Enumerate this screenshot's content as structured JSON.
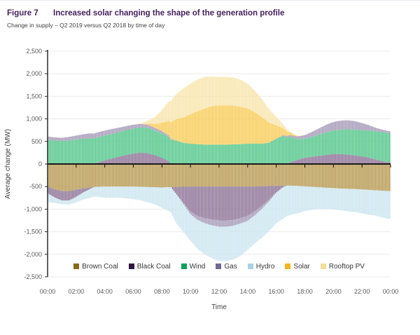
{
  "header": {
    "figure_label": "Figure 7",
    "title": "Increased solar changing the shape of the generation profile",
    "subtitle": "Change in supply – Q2 2019 versus Q2 2018 by time of day"
  },
  "chart_data": {
    "type": "bar",
    "variant": "diverging-stacked-columns-half-hourly",
    "title": "Increased solar changing the shape of the generation profile",
    "xlabel": "Time",
    "ylabel": "Average change (MW)",
    "ylim": [
      -2500,
      2500
    ],
    "ytick_values": [
      2500,
      2000,
      1500,
      1000,
      500,
      0,
      -500,
      -1000,
      -1500,
      -2000,
      -2500
    ],
    "ytick_labels": [
      "2,500",
      "2,000",
      "1,500",
      "1,000",
      "500",
      "0",
      "-500",
      "-1,000",
      "-1,500",
      "-2,000",
      "-2,500"
    ],
    "xtick_labels": [
      "00:00",
      "02:00",
      "04:00",
      "06:00",
      "08:00",
      "10:00",
      "12:00",
      "14:00",
      "16:00",
      "18:00",
      "20:00",
      "22:00",
      "00:00"
    ],
    "x_unit_hours": 0.5,
    "x_start": "00:00",
    "x_end": "24:00",
    "grid": "horizontal-light",
    "legend_position": "bottom",
    "axis_color": "#1a1a1a",
    "grid_color": "#ebebeb",
    "tick_label_color": "#595959",
    "series": [
      {
        "name": "Brown Coal",
        "legend_color": "#8a691b",
        "color": "#b99c55",
        "values": [
          -500,
          -560,
          -600,
          -600,
          -570,
          -540,
          -520,
          -505,
          -500,
          -500,
          -500,
          -500,
          -500,
          -505,
          -510,
          -515,
          -520,
          -515,
          -510,
          -505,
          -500,
          -500,
          -500,
          -500,
          -500,
          -500,
          -500,
          -500,
          -500,
          -500,
          -495,
          -490,
          -485,
          -480,
          -480,
          -485,
          -495,
          -505,
          -515,
          -525,
          -535,
          -545,
          -550,
          -555,
          -565,
          -575,
          -585,
          -595,
          -600
        ]
      },
      {
        "name": "Black Coal",
        "legend_color": "#2f1540",
        "color": "#8f7598",
        "values": [
          -150,
          -180,
          -210,
          -210,
          -160,
          -90,
          -30,
          30,
          80,
          120,
          160,
          200,
          230,
          250,
          240,
          200,
          140,
          60,
          -150,
          -350,
          -550,
          -650,
          -700,
          -730,
          -750,
          -750,
          -740,
          -700,
          -650,
          -550,
          -430,
          -300,
          -150,
          -30,
          40,
          90,
          140,
          160,
          180,
          200,
          220,
          220,
          210,
          190,
          170,
          140,
          100,
          60,
          30
        ]
      },
      {
        "name": "Wind",
        "legend_color": "#0aa35c",
        "color": "#56c78c",
        "values": [
          540,
          520,
          510,
          520,
          540,
          560,
          570,
          560,
          550,
          545,
          545,
          550,
          555,
          560,
          560,
          545,
          540,
          540,
          520,
          470,
          450,
          440,
          430,
          430,
          430,
          430,
          435,
          440,
          450,
          450,
          450,
          470,
          560,
          620,
          560,
          460,
          420,
          440,
          470,
          500,
          520,
          540,
          560,
          570,
          580,
          600,
          620,
          645,
          650
        ]
      },
      {
        "name": "Gas",
        "legend_color": "#716a8c",
        "color": "#a79cb9",
        "values": [
          70,
          70,
          70,
          80,
          90,
          100,
          110,
          110,
          110,
          110,
          100,
          90,
          85,
          80,
          70,
          60,
          50,
          30,
          0,
          -30,
          -60,
          -90,
          -110,
          -130,
          -140,
          -140,
          -130,
          -120,
          -110,
          -90,
          -70,
          -40,
          0,
          20,
          40,
          60,
          80,
          110,
          140,
          170,
          190,
          200,
          200,
          190,
          160,
          120,
          80,
          50,
          40
        ]
      },
      {
        "name": "Hydro",
        "legend_color": "#a9d3e1",
        "color": "#cde6f0",
        "values": [
          -200,
          -120,
          -80,
          -90,
          -120,
          -160,
          -200,
          -220,
          -250,
          -250,
          -250,
          -260,
          -280,
          -300,
          -340,
          -380,
          -450,
          -530,
          -650,
          -620,
          -590,
          -640,
          -690,
          -730,
          -760,
          -760,
          -750,
          -720,
          -640,
          -620,
          -640,
          -660,
          -680,
          -700,
          -650,
          -610,
          -550,
          -510,
          -480,
          -470,
          -470,
          -480,
          -500,
          -510,
          -530,
          -550,
          -560,
          -600,
          -620
        ]
      },
      {
        "name": "Solar",
        "legend_color": "#f2b61f",
        "color": "#f8cd5c",
        "values": [
          0,
          0,
          0,
          0,
          0,
          0,
          0,
          0,
          0,
          0,
          0,
          0,
          0,
          0,
          30,
          80,
          180,
          330,
          470,
          560,
          650,
          730,
          800,
          850,
          870,
          870,
          860,
          830,
          780,
          700,
          590,
          450,
          300,
          150,
          50,
          10,
          0,
          0,
          0,
          0,
          0,
          0,
          0,
          0,
          0,
          0,
          0,
          0,
          0
        ]
      },
      {
        "name": "Rooftop PV",
        "legend_color": "#f6dd9a",
        "color": "#f8e6ae",
        "values": [
          0,
          0,
          0,
          0,
          0,
          0,
          0,
          0,
          0,
          0,
          0,
          0,
          0,
          0,
          60,
          150,
          280,
          430,
          560,
          640,
          680,
          700,
          700,
          660,
          630,
          630,
          620,
          600,
          550,
          480,
          400,
          300,
          190,
          90,
          20,
          0,
          0,
          0,
          0,
          0,
          0,
          0,
          0,
          0,
          0,
          0,
          0,
          0,
          0
        ]
      }
    ]
  }
}
